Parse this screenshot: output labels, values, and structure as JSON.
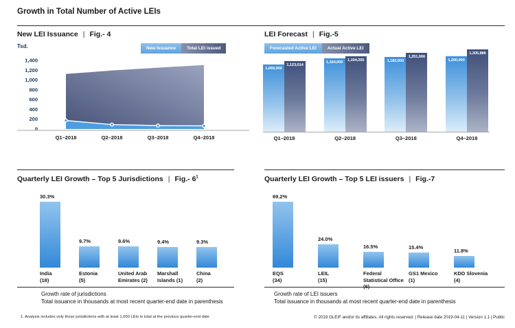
{
  "page": {
    "title": "Growth in Total Number of Active LEIs",
    "separator": "|",
    "footnote": "1. Analysis includes only those jurisdictions with at least 1,000 LEIs in total at the previous quarter-end date",
    "copyright": "© 2019 GLEIF and/or its affiliates. All rights reserved.  |  Release date 2019-04-11  |  Version 1.1  |  Public"
  },
  "colors": {
    "light_blue_bar_top": "#92C4ED",
    "light_blue_bar_bottom": "#3388D8",
    "forecast_bar_top": "#3E90DB",
    "forecast_bar_bottom": "#DCEDFA",
    "actual_bar_top": "#40507A",
    "actual_bar_bottom": "#ACB3C7",
    "area_total_dark": "#475379",
    "area_total_light": "#9AA3BE",
    "area_new_issuance": "#4D9EE0",
    "axis_label_navy": "#17365D"
  },
  "chart_data": [
    {
      "id": "fig4",
      "type": "area",
      "title": "New LEI Issuance",
      "fig": "Fig.- 4",
      "unit_label": "Tsd.",
      "legend": [
        "New Issuance",
        "Total LEI issued"
      ],
      "x": [
        "Q1–2018",
        "Q2–2018",
        "Q3–2018",
        "Q4–2018"
      ],
      "series": [
        {
          "name": "New Issuance",
          "values_estimated_thousands": [
            175,
            90,
            70,
            65
          ]
        },
        {
          "name": "Total LEI issued",
          "values_thousands": [
            1123,
            1194,
            1251,
            1306
          ]
        }
      ],
      "ylim": [
        0,
        1400
      ],
      "ytick_values": [
        0,
        200,
        400,
        600,
        800,
        1000,
        1200,
        1400
      ],
      "ytick_labels": [
        "0",
        "200",
        "400",
        "600",
        "800",
        "1,000",
        "1,200",
        "1,400"
      ],
      "grid": false,
      "legend_position": "top-right"
    },
    {
      "id": "fig5",
      "type": "bar",
      "title": "LEI Forecast",
      "fig": "Fig.-5",
      "legend": [
        "Forecasted Active LEI",
        "Actual Active LEI"
      ],
      "x": [
        "Q1–2018",
        "Q2–2018",
        "Q3–2018",
        "Q4–2018"
      ],
      "series": [
        {
          "name": "Forecasted Active LEI",
          "values": [
            1069000,
            1164000,
            1182000,
            1200000
          ],
          "labels": [
            "1,069,000",
            "1,164,000",
            "1,182,000",
            "1,200,000"
          ]
        },
        {
          "name": "Actual Active LEI",
          "values": [
            1123014,
            1194265,
            1251066,
            1305886
          ],
          "labels": [
            "1,123,014",
            "1,194,265",
            "1,251,066",
            "1,305,886"
          ]
        }
      ],
      "legend_position": "top-left"
    },
    {
      "id": "fig6",
      "type": "bar",
      "title": "Quarterly LEI Growth – Top 5 Jurisdictions",
      "fig": "Fig.- 6",
      "fig_sup": "1",
      "categories": [
        [
          "India",
          "(18)"
        ],
        [
          "Estonia",
          "(5)"
        ],
        [
          "United Arab",
          "Emirates (2)"
        ],
        [
          "Marshall",
          "Islands (1)"
        ],
        [
          "China",
          "(2)"
        ]
      ],
      "values": [
        30.3,
        9.7,
        9.6,
        9.4,
        9.3
      ],
      "value_labels": [
        "30.3%",
        "9.7%",
        "9.6%",
        "9.4%",
        "9.3%"
      ],
      "caption1": "Growth rate of jurisdictions",
      "caption2": "Total issuance in thousands at most recent quarter-end date in parenthesis"
    },
    {
      "id": "fig7",
      "type": "bar",
      "title": "Quarterly LEI Growth – Top 5 LEI issuers",
      "fig": "Fig.-7",
      "categories": [
        [
          "EQS",
          "(34)"
        ],
        [
          "LEIL",
          "(15)"
        ],
        [
          "Federal",
          "Statistical Office",
          "(6)"
        ],
        [
          "GS1 Mexico",
          "(1)"
        ],
        [
          "KDD Slovenia",
          "(4)"
        ]
      ],
      "values": [
        69.2,
        24.0,
        16.5,
        15.4,
        11.8
      ],
      "value_labels": [
        "69.2%",
        "24.0%",
        "16.5%",
        "15.4%",
        "11.8%"
      ],
      "caption1": "Growth rate of LEI issuers",
      "caption2": "Total issuance in thousands at most recent quarter-end date in parenthesis"
    }
  ]
}
